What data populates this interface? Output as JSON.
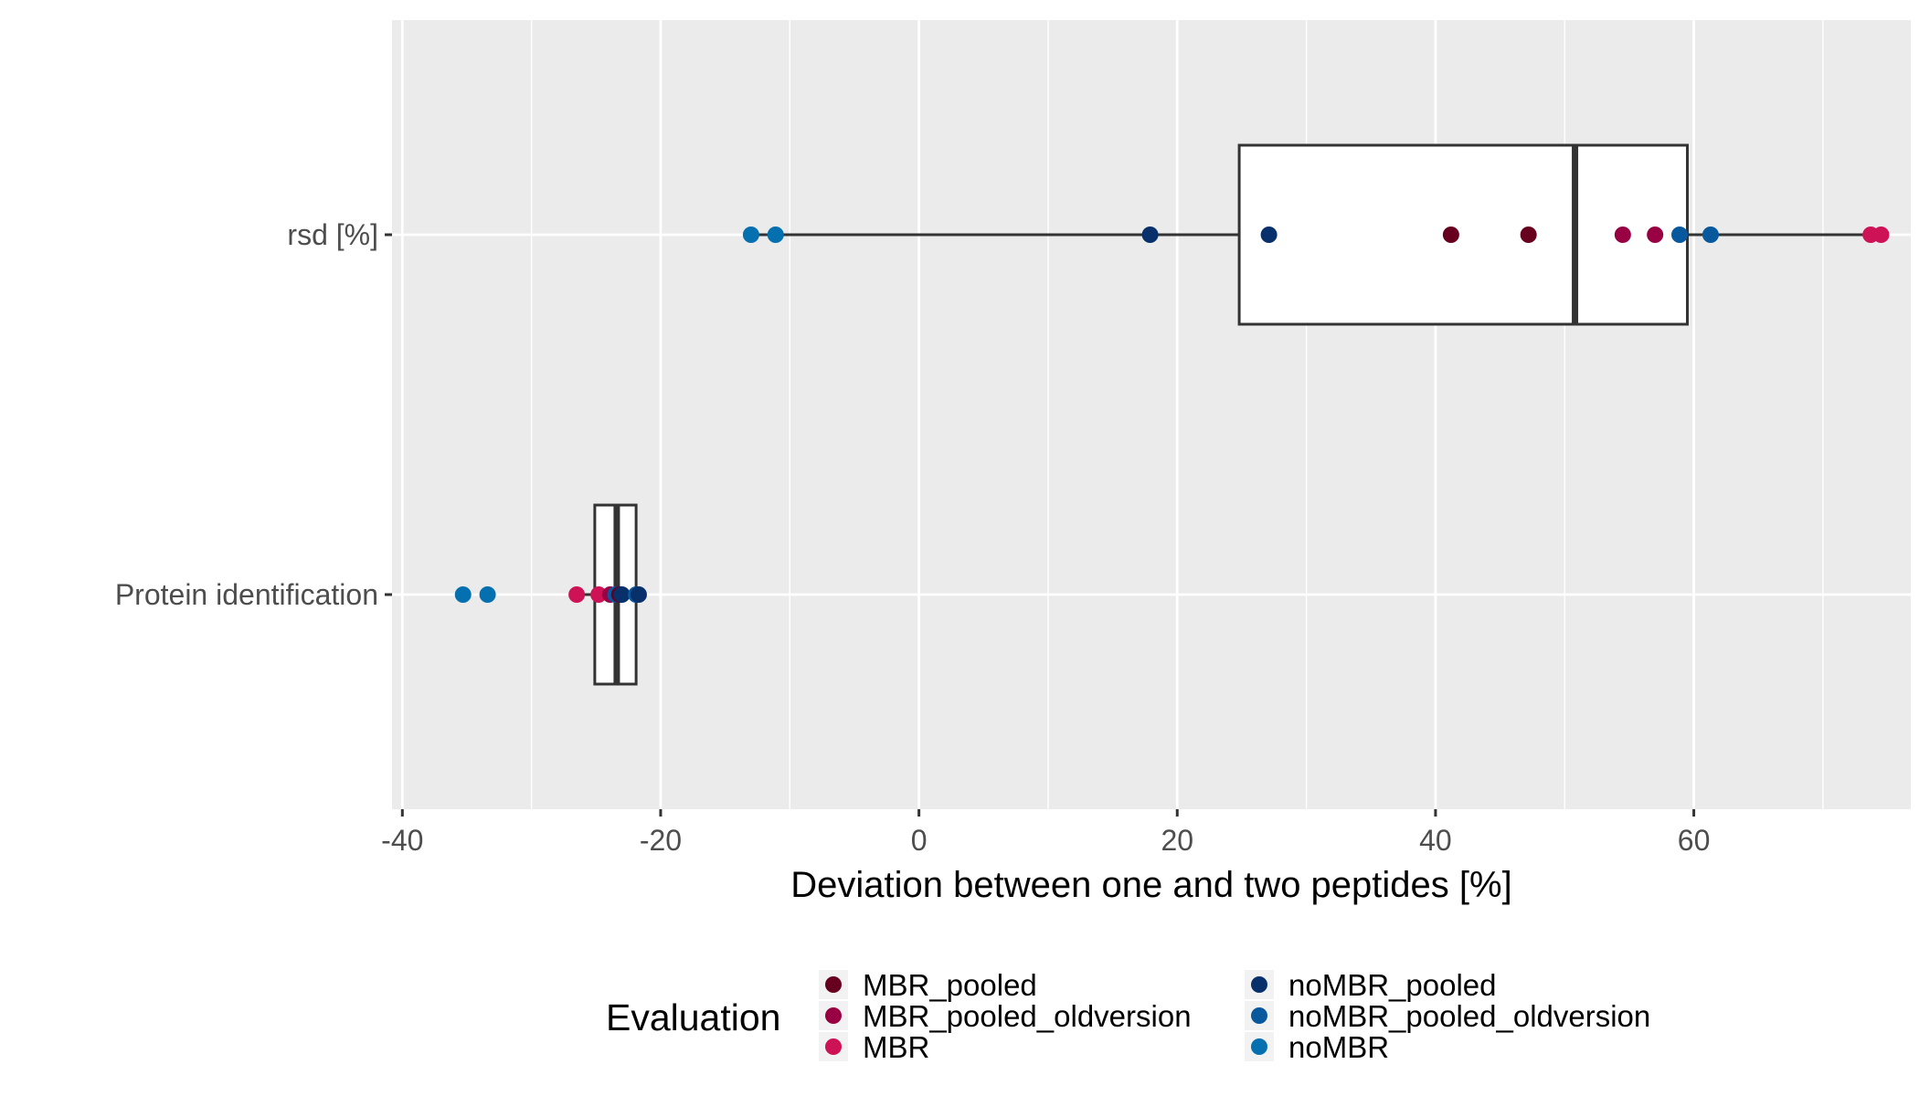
{
  "chart_data": {
    "type": "boxplot",
    "orientation": "horizontal",
    "xlabel": "Deviation between one and two peptides [%]",
    "ylabel": "",
    "xlim": [
      -40.8,
      76.8
    ],
    "xticks": [
      -40,
      -20,
      0,
      20,
      40,
      60
    ],
    "xtick_labels": [
      "-40",
      "-20",
      "0",
      "20",
      "40",
      "60"
    ],
    "categories": [
      "rsd [%]",
      "Protein identification"
    ],
    "grid": true,
    "legend": {
      "title": "Evaluation",
      "position": "bottom",
      "entries": [
        {
          "name": "MBR_pooled",
          "color": "#67001F"
        },
        {
          "name": "MBR_pooled_oldversion",
          "color": "#980043"
        },
        {
          "name": "MBR",
          "color": "#CE1256"
        },
        {
          "name": "noMBR_pooled",
          "color": "#08306B"
        },
        {
          "name": "noMBR_pooled_oldversion",
          "color": "#08589E"
        },
        {
          "name": "noMBR",
          "color": "#0570B0"
        }
      ]
    },
    "boxes": [
      {
        "category": "rsd [%]",
        "whisker_low": -13.0,
        "q1": 24.8,
        "median": 50.8,
        "q3": 59.5,
        "whisker_high": 74.5
      },
      {
        "category": "Protein identification",
        "whisker_low": -26.5,
        "q1": -25.1,
        "median": -23.4,
        "q3": -21.9,
        "whisker_high": -21.7
      }
    ],
    "points": [
      {
        "category": "rsd [%]",
        "series": "noMBR",
        "x": -13.0
      },
      {
        "category": "rsd [%]",
        "series": "noMBR",
        "x": -11.1
      },
      {
        "category": "rsd [%]",
        "series": "noMBR_pooled",
        "x": 17.9
      },
      {
        "category": "rsd [%]",
        "series": "noMBR_pooled",
        "x": 27.1
      },
      {
        "category": "rsd [%]",
        "series": "MBR_pooled",
        "x": 41.2
      },
      {
        "category": "rsd [%]",
        "series": "MBR_pooled",
        "x": 47.2
      },
      {
        "category": "rsd [%]",
        "series": "MBR_pooled_oldversion",
        "x": 54.5
      },
      {
        "category": "rsd [%]",
        "series": "MBR_pooled_oldversion",
        "x": 57.0
      },
      {
        "category": "rsd [%]",
        "series": "noMBR_pooled_oldversion",
        "x": 58.9
      },
      {
        "category": "rsd [%]",
        "series": "noMBR_pooled_oldversion",
        "x": 61.3
      },
      {
        "category": "rsd [%]",
        "series": "MBR",
        "x": 73.7
      },
      {
        "category": "rsd [%]",
        "series": "MBR",
        "x": 74.5
      },
      {
        "category": "Protein identification",
        "series": "noMBR",
        "x": -35.3
      },
      {
        "category": "Protein identification",
        "series": "noMBR",
        "x": -33.4
      },
      {
        "category": "Protein identification",
        "series": "MBR",
        "x": -26.5
      },
      {
        "category": "Protein identification",
        "series": "MBR",
        "x": -24.8
      },
      {
        "category": "Protein identification",
        "series": "MBR_pooled_oldversion",
        "x": -23.9
      },
      {
        "category": "Protein identification",
        "series": "noMBR_pooled_oldversion",
        "x": -23.5
      },
      {
        "category": "Protein identification",
        "series": "MBR_pooled",
        "x": -23.2
      },
      {
        "category": "Protein identification",
        "series": "noMBR_pooled",
        "x": -23.0
      },
      {
        "category": "Protein identification",
        "series": "noMBR_pooled_oldversion",
        "x": -21.9
      },
      {
        "category": "Protein identification",
        "series": "noMBR_pooled",
        "x": -21.7
      }
    ]
  }
}
